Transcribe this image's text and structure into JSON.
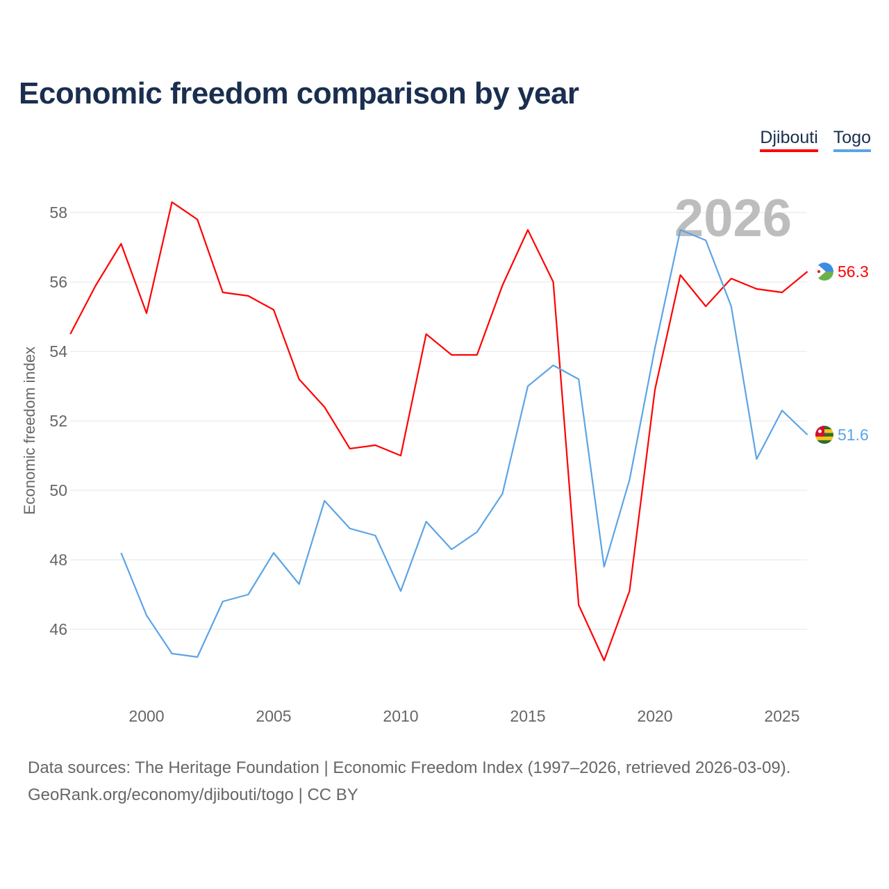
{
  "chart_data": {
    "type": "line",
    "title": "Economic freedom comparison by year",
    "xlabel": "",
    "ylabel": "Economic freedom index",
    "xlim": [
      1997,
      2026
    ],
    "ylim": [
      44,
      59
    ],
    "grid": true,
    "legend_position": "top-right",
    "year_label": "2026",
    "x_ticks": [
      2000,
      2005,
      2010,
      2015,
      2020,
      2025
    ],
    "y_ticks": [
      46,
      48,
      50,
      52,
      54,
      56,
      58
    ],
    "x": [
      1997,
      1998,
      1999,
      2000,
      2001,
      2002,
      2003,
      2004,
      2005,
      2006,
      2007,
      2008,
      2009,
      2010,
      2011,
      2012,
      2013,
      2014,
      2015,
      2016,
      2017,
      2018,
      2019,
      2020,
      2021,
      2022,
      2023,
      2024,
      2025,
      2026
    ],
    "series": [
      {
        "name": "Djibouti",
        "color": "#ff0000",
        "end_label": "56.3",
        "values": [
          54.5,
          55.9,
          57.1,
          55.1,
          58.3,
          57.8,
          55.7,
          55.6,
          55.2,
          53.2,
          52.4,
          51.2,
          51.3,
          51.0,
          54.5,
          53.9,
          53.9,
          55.9,
          57.5,
          56.0,
          46.7,
          45.1,
          47.1,
          52.9,
          56.2,
          55.3,
          56.1,
          55.8,
          55.7,
          56.3
        ]
      },
      {
        "name": "Togo",
        "color": "#5ba4e6",
        "end_label": "51.6",
        "values": [
          null,
          null,
          48.2,
          46.4,
          45.3,
          45.2,
          46.8,
          47.0,
          48.2,
          47.3,
          49.7,
          48.9,
          48.7,
          47.1,
          49.1,
          48.3,
          48.8,
          49.9,
          53.0,
          53.6,
          53.2,
          47.8,
          50.3,
          54.1,
          57.5,
          57.2,
          55.3,
          50.9,
          52.3,
          51.6
        ]
      }
    ]
  },
  "footer": {
    "line1": "Data sources: The Heritage Foundation | Economic Freedom Index (1997–2026, retrieved 2026-03-09).",
    "line2": "GeoRank.org/economy/djibouti/togo | CC BY"
  }
}
